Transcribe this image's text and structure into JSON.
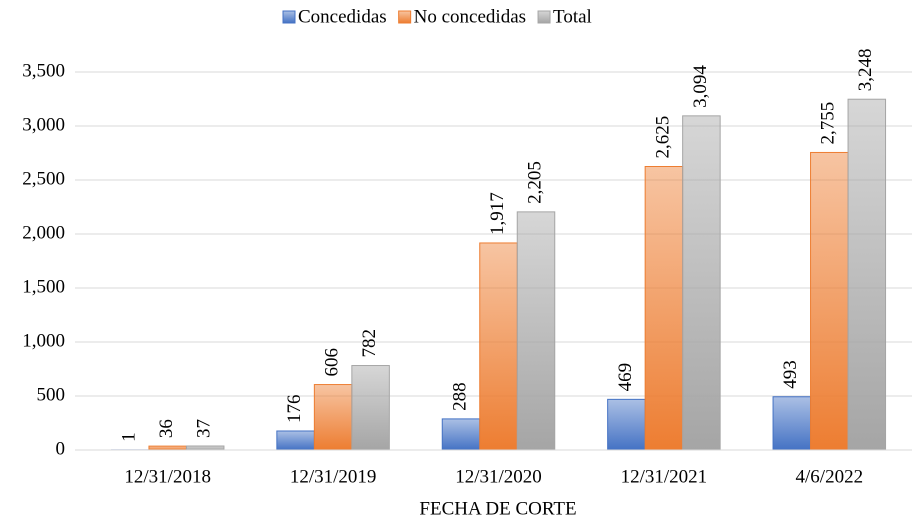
{
  "chart_data": {
    "type": "bar",
    "x_label": "FECHA DE CORTE",
    "categories": [
      "12/31/2018",
      "12/31/2019",
      "12/31/2020",
      "12/31/2021",
      "4/6/2022"
    ],
    "series": [
      {
        "name": "Concedidas",
        "color": "#4472c4",
        "values": [
          1,
          176,
          288,
          469,
          493
        ],
        "value_labels": [
          "1",
          "176",
          "288",
          "469",
          "493"
        ]
      },
      {
        "name": "No concedidas",
        "color": "#ed7d31",
        "values": [
          36,
          606,
          1917,
          2625,
          2755
        ],
        "value_labels": [
          "36",
          "606",
          "1,917",
          "2,625",
          "2,755"
        ]
      },
      {
        "name": "Total",
        "color": "#a5a5a5",
        "values": [
          37,
          782,
          2205,
          3094,
          3248
        ],
        "value_labels": [
          "37",
          "782",
          "2,205",
          "3,094",
          "3,248"
        ]
      }
    ],
    "ylim": [
      0,
      3500
    ],
    "yticks": [
      0,
      500,
      {
        "value": 1000,
        "label": "1,000"
      },
      {
        "value": 1500,
        "label": "1,500"
      },
      {
        "value": 2000,
        "label": "2,000"
      },
      {
        "value": 2500,
        "label": "2,500"
      },
      {
        "value": 3000,
        "label": "3,000"
      },
      {
        "value": 3500,
        "label": "3,500"
      }
    ],
    "grid": true,
    "legend": "top"
  }
}
